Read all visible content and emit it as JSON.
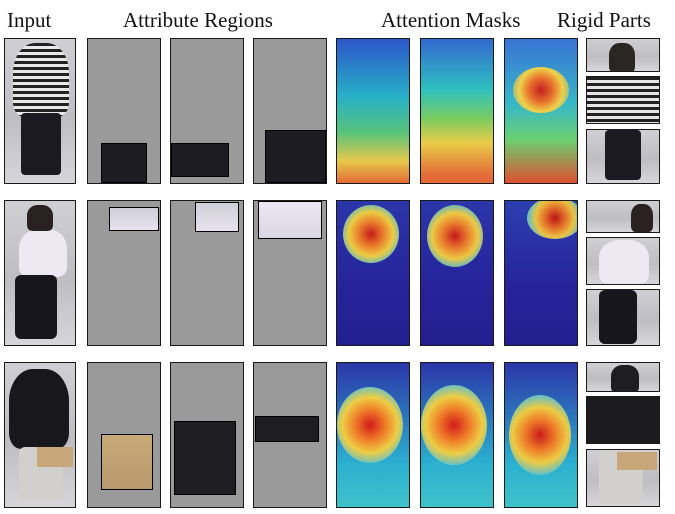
{
  "headers": {
    "input": "Input",
    "attribute_regions": "Attribute Regions",
    "attention_masks": "Attention Masks",
    "rigid_parts": "Rigid Parts"
  }
}
